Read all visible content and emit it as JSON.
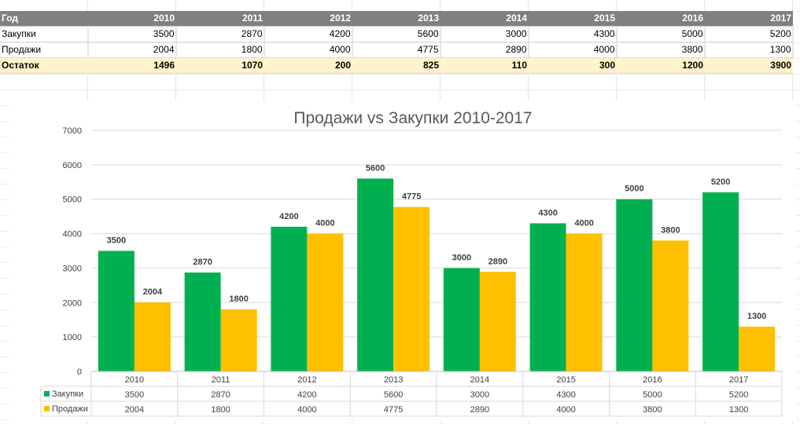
{
  "sheet": {
    "header": {
      "label": "Год",
      "years": [
        "2010",
        "2011",
        "2012",
        "2013",
        "2014",
        "2015",
        "2016",
        "2017"
      ]
    },
    "rows": [
      {
        "label": "Закупки",
        "values": [
          "3500",
          "2870",
          "4200",
          "5600",
          "3000",
          "4300",
          "5000",
          "5200"
        ]
      },
      {
        "label": "Продажи",
        "values": [
          "2004",
          "1800",
          "4000",
          "4775",
          "2890",
          "4000",
          "3800",
          "1300"
        ]
      },
      {
        "label": "Остаток",
        "values": [
          "1496",
          "1070",
          "200",
          "825",
          "110",
          "300",
          "1200",
          "3900"
        ]
      }
    ]
  },
  "chart_data": {
    "type": "bar",
    "title": "Продажи vs Закупки 2010-2017",
    "xlabel": "",
    "ylabel": "",
    "categories": [
      "2010",
      "2011",
      "2012",
      "2013",
      "2014",
      "2015",
      "2016",
      "2017"
    ],
    "series": [
      {
        "name": "Закупки",
        "color": "#00b050",
        "values": [
          3500,
          2870,
          4200,
          5600,
          3000,
          4300,
          5000,
          5200
        ]
      },
      {
        "name": "Продажи",
        "color": "#ffc000",
        "values": [
          2004,
          1800,
          4000,
          4775,
          2890,
          4000,
          3800,
          1300
        ]
      }
    ],
    "ylim": [
      0,
      7000
    ],
    "yticks": [
      0,
      1000,
      2000,
      3000,
      4000,
      5000,
      6000,
      7000
    ],
    "grid": true,
    "data_table": true,
    "data_labels": true
  }
}
